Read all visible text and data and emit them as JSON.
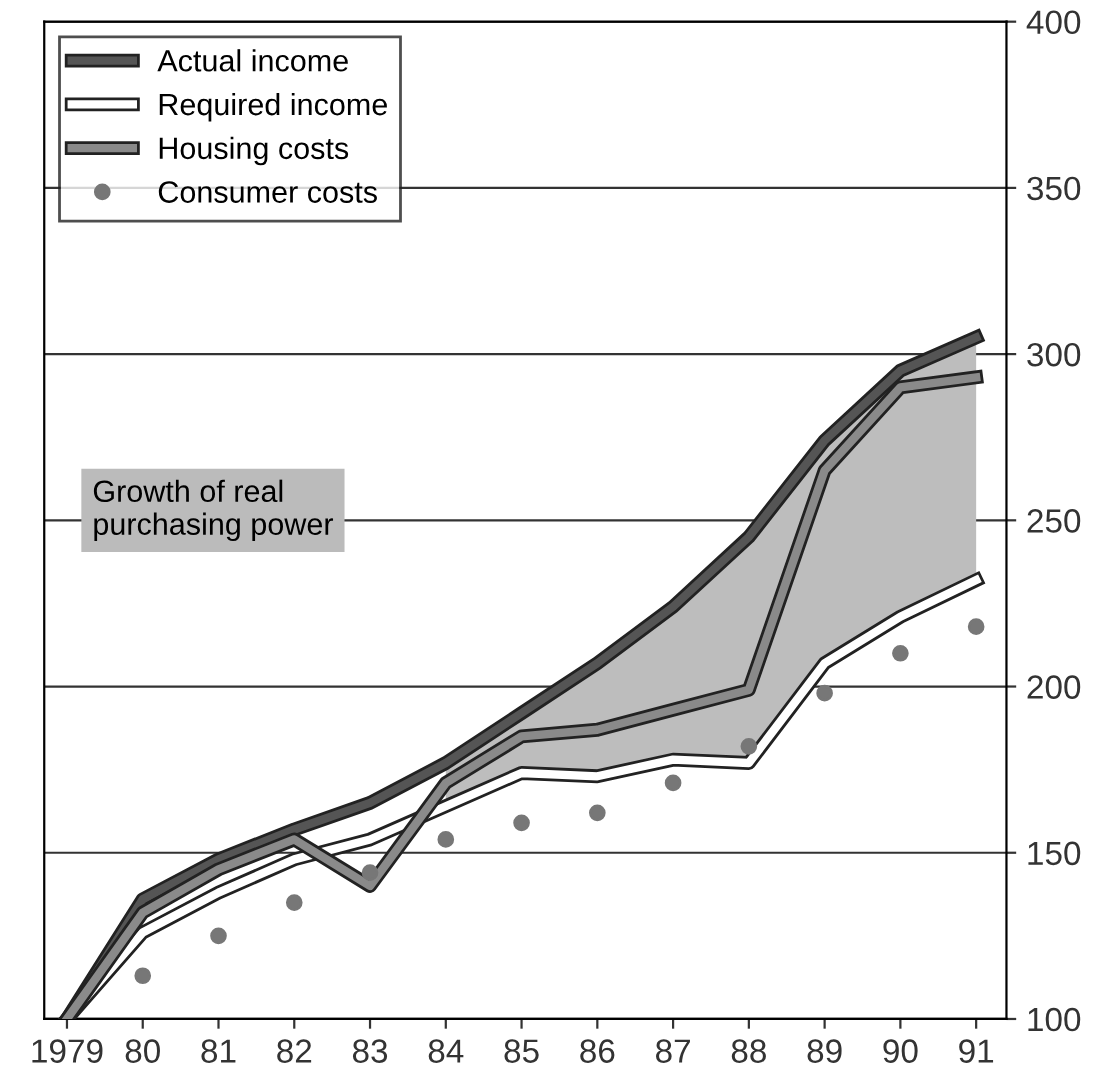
{
  "chart_data": {
    "type": "line",
    "categories": [
      "1979",
      "80",
      "81",
      "82",
      "83",
      "84",
      "85",
      "86",
      "87",
      "88",
      "89",
      "90",
      "91"
    ],
    "series": [
      {
        "name": "Actual income",
        "color": "#555555",
        "line_style": "solid",
        "marker": "none",
        "values": [
          100,
          136,
          148,
          157,
          165,
          177,
          192,
          207,
          224,
          245,
          274,
          295,
          305
        ],
        "lower": [
          null,
          null,
          null,
          null,
          null,
          164,
          174,
          173,
          178,
          177,
          207,
          221,
          232
        ],
        "upper": [
          null,
          null,
          null,
          null,
          null,
          177,
          192,
          207,
          224,
          245,
          274,
          295,
          305
        ]
      },
      {
        "name": "Required income",
        "color": "#ffffff",
        "line_style": "solid",
        "marker": "none",
        "values": [
          100,
          126,
          138,
          148,
          154,
          164,
          174,
          173,
          178,
          177,
          207,
          221,
          232
        ]
      },
      {
        "name": "Housing costs",
        "color": "#8a8a8a",
        "line_style": "solid",
        "marker": "none",
        "values": [
          100,
          132,
          145,
          154,
          140,
          171,
          185,
          187,
          193,
          199,
          265,
          290,
          293
        ]
      },
      {
        "name": "Consumer costs",
        "type": "scatter",
        "color": "#777777",
        "marker": "circle",
        "values": [
          null,
          113,
          125,
          135,
          144,
          154,
          159,
          162,
          171,
          182,
          198,
          210,
          218
        ]
      }
    ],
    "ylim": [
      100,
      400
    ],
    "yticks": [
      100,
      150,
      200,
      250,
      300,
      350,
      400
    ],
    "grid": "y",
    "legend": "top left",
    "annotations": [
      "Growth of real\npurchasing power"
    ]
  }
}
